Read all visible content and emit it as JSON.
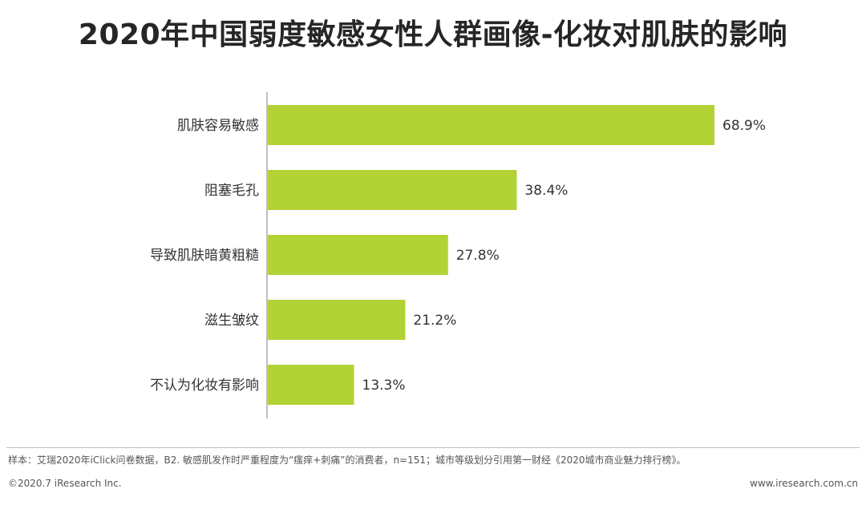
{
  "page": {
    "title": "2020年中国弱度敏感女性人群画像-化妆对肌肤的影响",
    "note": "样本：艾瑞2020年iClick问卷数据，B2. 敏感肌发作时严重程度为“瘙痒+刺痛”的消费者，n=151；城市等级划分引用第一财经《2020城市商业魅力排行榜》。",
    "copyright": "©2020.7 iResearch Inc.",
    "website": "www.iresearch.com.cn"
  },
  "colors": {
    "bar": "#b2d235",
    "axis": "#7f7f7f"
  },
  "chart_data": {
    "type": "bar",
    "orientation": "horizontal",
    "categories": [
      "肌肤容易敏感",
      "阻塞毛孔",
      "导致肌肤暗黄粗糙",
      "滋生皱纹",
      "不认为化妆有影响"
    ],
    "values": [
      68.9,
      38.4,
      27.8,
      21.2,
      13.3
    ],
    "labels": [
      "68.9%",
      "38.4%",
      "27.8%",
      "21.2%",
      "13.3%"
    ],
    "unit": "%",
    "xlim": [
      0,
      80
    ],
    "grid": false,
    "legend": "none"
  }
}
